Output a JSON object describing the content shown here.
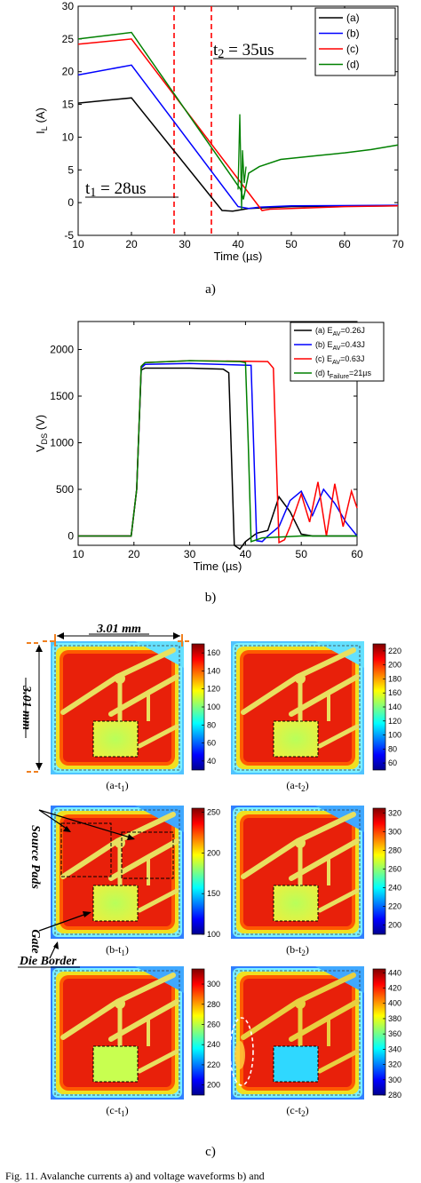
{
  "chart_data": [
    {
      "type": "line",
      "ylabel": "I_L (A)",
      "ylabel_main": "I",
      "ylabel_sub": "L",
      "ylabel_unit": " (A)",
      "xlabel": "Time (µs)",
      "xlim": [
        10,
        70
      ],
      "ylim": [
        -5,
        30
      ],
      "xticks": [
        10,
        20,
        30,
        40,
        50,
        60,
        70
      ],
      "yticks": [
        -5,
        0,
        5,
        10,
        15,
        20,
        25,
        30
      ],
      "legend_position": "top-right",
      "series": [
        {
          "name": "(a)",
          "color": "#000000",
          "x": [
            10,
            20,
            37,
            39,
            42,
            50,
            70
          ],
          "y": [
            15.2,
            16,
            -1.2,
            -1.3,
            -0.9,
            -0.6,
            -0.5
          ]
        },
        {
          "name": "(b)",
          "color": "#0000ff",
          "x": [
            10,
            20,
            40,
            42,
            44,
            50,
            70
          ],
          "y": [
            19.5,
            21,
            -0.6,
            -0.9,
            -0.7,
            -0.5,
            -0.4
          ]
        },
        {
          "name": "(c)",
          "color": "#ff0000",
          "x": [
            10,
            20,
            44.5,
            46,
            50,
            60,
            70
          ],
          "y": [
            24.2,
            25,
            -1.2,
            -1.0,
            -0.9,
            -0.6,
            -0.5
          ]
        },
        {
          "name": "(d)",
          "color": "#008000",
          "x": [
            10,
            20,
            40.5,
            41,
            42,
            44,
            48,
            55,
            60,
            65,
            70
          ],
          "y": [
            25,
            26,
            2,
            0.5,
            4.5,
            5.5,
            6.6,
            7.2,
            7.6,
            8.1,
            8.8
          ]
        }
      ],
      "annotations": [
        {
          "text": "t",
          "sub": "2",
          "rest": " = 35us",
          "x": 35
        },
        {
          "text": "t",
          "sub": "1",
          "rest": " = 28us",
          "x": 28
        }
      ],
      "caption": "a)"
    },
    {
      "type": "line",
      "ylabel": "V_DS (V)",
      "ylabel_main": "V",
      "ylabel_sub": "DS",
      "ylabel_unit": " (V)",
      "xlabel": "Time (µs)",
      "xlim": [
        10,
        60
      ],
      "ylim": [
        -100,
        2300
      ],
      "xticks": [
        10,
        20,
        30,
        40,
        50,
        60
      ],
      "yticks": [
        0,
        500,
        1000,
        1500,
        2000
      ],
      "legend_position": "top-right",
      "series": [
        {
          "name": "(a) E_AV=0.26J",
          "label_main": "(a) E",
          "label_sub": "AV",
          "label_rest": "=0.26J",
          "color": "#000000",
          "x": [
            10,
            19.5,
            20.5,
            21.3,
            22,
            30,
            36,
            37,
            38,
            39,
            40,
            42,
            44,
            46,
            48,
            50,
            52,
            54,
            56,
            58,
            60
          ],
          "y": [
            0,
            0,
            500,
            1780,
            1800,
            1800,
            1790,
            1750,
            -100,
            -140,
            -60,
            30,
            60,
            420,
            260,
            20,
            0,
            0,
            0,
            0,
            0
          ]
        },
        {
          "name": "(b) E_AV=0.43J",
          "label_main": "(b) E",
          "label_sub": "AV",
          "label_rest": "=0.43J",
          "color": "#0000ff",
          "x": [
            10,
            19.5,
            20.5,
            21.3,
            22,
            30,
            41,
            42,
            43,
            44,
            46,
            48,
            50,
            52,
            54,
            56,
            58,
            60
          ],
          "y": [
            0,
            0,
            500,
            1800,
            1840,
            1850,
            1830,
            -50,
            -60,
            0,
            100,
            380,
            480,
            220,
            500,
            350,
            150,
            0
          ]
        },
        {
          "name": "(c) E_AV=0.63J",
          "label_main": "(c) E",
          "label_sub": "AV",
          "label_rest": "=0.63J",
          "color": "#ff0000",
          "x": [
            10,
            19.5,
            20.5,
            21.3,
            22,
            30,
            44,
            45,
            46,
            47,
            48,
            50,
            51.5,
            53,
            54.5,
            56,
            57.5,
            59,
            60
          ],
          "y": [
            0,
            0,
            500,
            1820,
            1860,
            1880,
            1870,
            1800,
            -70,
            -40,
            100,
            450,
            150,
            580,
            0,
            560,
            100,
            480,
            300
          ]
        },
        {
          "name": "(d) t_Failure=21µs",
          "label_main": "(d) t",
          "label_sub": "Failure",
          "label_rest": "=21µs",
          "color": "#008000",
          "x": [
            10,
            19.5,
            20.5,
            21.3,
            22,
            30,
            39,
            40,
            40.5,
            41,
            43,
            50,
            60
          ],
          "y": [
            0,
            0,
            500,
            1820,
            1860,
            1880,
            1870,
            1860,
            1000,
            -60,
            -20,
            0,
            0
          ]
        }
      ],
      "caption": "b)"
    },
    {
      "type": "heatmap",
      "panels": [
        {
          "label": "(a-t",
          "sub": "1",
          "end": ")",
          "colorbar_ticks": [
            40,
            60,
            80,
            100,
            120,
            140,
            160
          ],
          "cmin": 30,
          "cmax": 170
        },
        {
          "label": "(a-t",
          "sub": "2",
          "end": ")",
          "colorbar_ticks": [
            60,
            80,
            100,
            120,
            140,
            160,
            180,
            200,
            220
          ],
          "cmin": 50,
          "cmax": 230
        },
        {
          "label": "(b-t",
          "sub": "1",
          "end": ")",
          "colorbar_ticks": [
            100,
            150,
            200,
            250
          ],
          "cmin": 100,
          "cmax": 255
        },
        {
          "label": "(b-t",
          "sub": "2",
          "end": ")",
          "colorbar_ticks": [
            200,
            220,
            240,
            260,
            280,
            300,
            320
          ],
          "cmin": 190,
          "cmax": 325
        },
        {
          "label": "(c-t",
          "sub": "1",
          "end": ")",
          "colorbar_ticks": [
            200,
            220,
            240,
            260,
            280,
            300
          ],
          "cmin": 190,
          "cmax": 315
        },
        {
          "label": "(c-t",
          "sub": "2",
          "end": ")",
          "colorbar_ticks": [
            280,
            300,
            320,
            340,
            360,
            380,
            400,
            420,
            440
          ],
          "cmin": 280,
          "cmax": 445
        }
      ],
      "annotations": {
        "width": "3.01 mm",
        "height": "3.01 mm",
        "source_pads": "Source Pads",
        "gate": "Gate",
        "die_border": "Die Border"
      },
      "caption": "c)"
    }
  ],
  "figure_caption": "Fig. 11. Avalanche currents a) and voltage waveforms b) and"
}
